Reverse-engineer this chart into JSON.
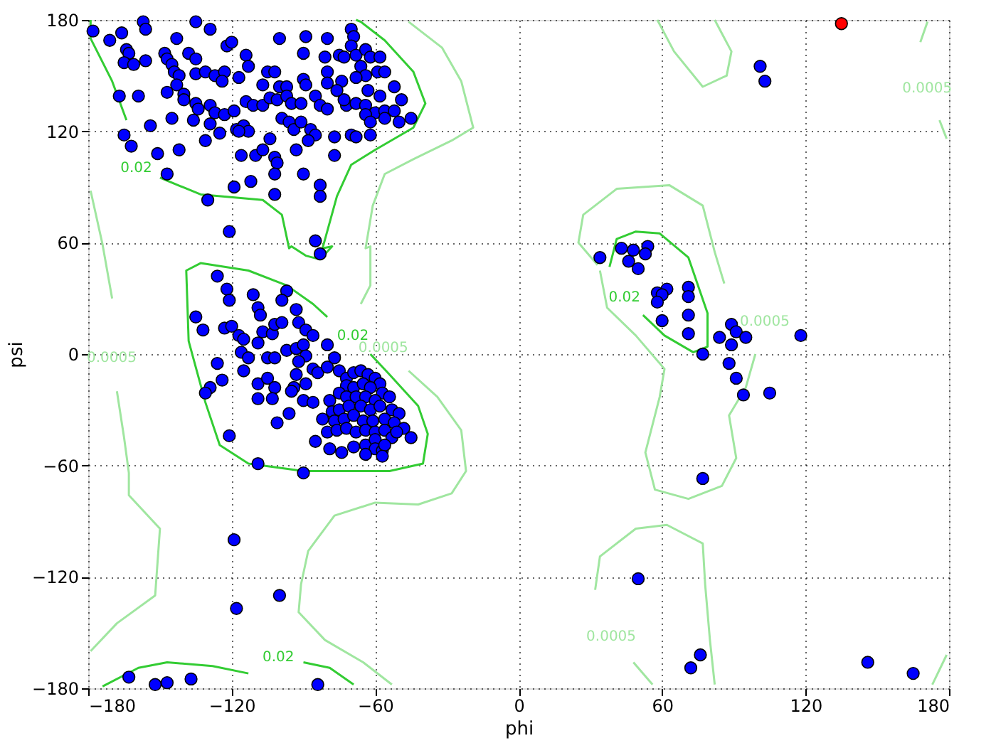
{
  "chart_data": {
    "type": "scatter",
    "xlabel": "phi",
    "ylabel": "psi",
    "xlim": [
      -180,
      180
    ],
    "ylim": [
      -180,
      180
    ],
    "xticks": [
      -180,
      -120,
      -60,
      0,
      60,
      120,
      180
    ],
    "yticks": [
      -180,
      -120,
      -60,
      0,
      60,
      120,
      180
    ],
    "grid": true,
    "marker": "circle",
    "series": [
      {
        "type": "line",
        "color": "#33cc33",
        "line_style": "solid",
        "marker": "none",
        "x": [
          -179,
          -179,
          -170,
          -164
        ],
        "values": [
          180,
          170,
          147,
          126
        ]
      },
      {
        "type": "line",
        "name": "0.02",
        "color": "#33cc33",
        "line_style": "solid",
        "marker": "none",
        "x": [
          -150,
          -133,
          -107,
          -99,
          -96,
          -95,
          -89,
          -83,
          -78,
          -82,
          -76,
          -70,
          -60,
          -44,
          -39,
          -44,
          -56,
          -66,
          -68
        ],
        "values": [
          95,
          86,
          83,
          75,
          57,
          58,
          53,
          51,
          58,
          57,
          85,
          102,
          110,
          122,
          135,
          152,
          169,
          179,
          180
        ]
      },
      {
        "type": "line",
        "name": "0.02",
        "color": "#33cc33",
        "line_style": "solid",
        "marker": "none",
        "x": [
          -62,
          -54,
          -42,
          -38,
          -40,
          -54,
          -90,
          -113,
          -125,
          -131,
          -138,
          -139,
          -133,
          -113,
          -97,
          -86,
          -80
        ],
        "values": [
          0,
          -11,
          -28,
          -43,
          -59,
          -63,
          -63,
          -59,
          -49,
          -26,
          7,
          45,
          49,
          45,
          37,
          27,
          20
        ]
      },
      {
        "type": "line",
        "name": "0.02",
        "color": "#33cc33",
        "line_style": "solid",
        "marker": "none",
        "x": [
          52,
          61,
          73,
          79,
          79,
          71,
          59,
          49,
          41,
          38
        ],
        "values": [
          21,
          10,
          1,
          4,
          22,
          52,
          65,
          66,
          62,
          47
        ]
      },
      {
        "type": "line",
        "color": "#33cc33",
        "line_style": "solid",
        "marker": "none",
        "x": [
          -174,
          -159,
          -147,
          -128,
          -113
        ],
        "values": [
          -179,
          -169,
          -166,
          -168,
          -172
        ]
      },
      {
        "type": "line",
        "name": "0.02",
        "color": "#33cc33",
        "line_style": "solid",
        "marker": "none",
        "x": [
          -90,
          -79,
          -69
        ],
        "values": [
          -166,
          -169,
          -178
        ]
      },
      {
        "type": "line",
        "color": "#a0e6a0",
        "line_style": "solid",
        "marker": "none",
        "x": [
          -46,
          -32,
          -24,
          -19,
          -28,
          -44,
          -56,
          -61,
          -64,
          -62,
          -62,
          -66
        ],
        "values": [
          179,
          165,
          147,
          122,
          115,
          105,
          97,
          80,
          57,
          58,
          37,
          27
        ]
      },
      {
        "type": "line",
        "name": "0.0005",
        "color": "#a0e6a0",
        "line_style": "solid",
        "marker": "none",
        "x": [
          -46,
          -34,
          -24,
          -22,
          -28,
          -42,
          -60,
          -77,
          -88,
          -91,
          -92,
          -81,
          -65,
          -53
        ],
        "values": [
          -9,
          -23,
          -41,
          -63,
          -75,
          -81,
          -80,
          -87,
          -106,
          -124,
          -139,
          -154,
          -166,
          -178
        ]
      },
      {
        "type": "line",
        "color": "#a0e6a0",
        "line_style": "solid",
        "marker": "none",
        "x": [
          -179,
          -174,
          -170
        ],
        "values": [
          88,
          59,
          30
        ]
      },
      {
        "type": "line",
        "name": "0.0005",
        "color": "#a0e6a0",
        "line_style": "solid",
        "marker": "none",
        "x": [
          -168,
          -165,
          -163,
          -163,
          -150,
          -152,
          -168,
          -179
        ],
        "values": [
          -20,
          -45,
          -64,
          -76,
          -94,
          -130,
          -145,
          -160
        ]
      },
      {
        "type": "line",
        "color": "#a0e6a0",
        "line_style": "solid",
        "marker": "none",
        "x": [
          33,
          25,
          27,
          41,
          63,
          77,
          82,
          86
        ],
        "values": [
          48,
          60,
          75,
          89,
          91,
          80,
          55,
          38
        ]
      },
      {
        "type": "line",
        "name": "0.0005",
        "color": "#a0e6a0",
        "line_style": "solid",
        "marker": "none",
        "x": [
          99,
          95,
          88,
          91,
          85,
          71,
          57,
          53,
          59,
          61,
          49,
          37,
          34
        ],
        "values": [
          0,
          -18,
          -33,
          -56,
          -71,
          -78,
          -73,
          -53,
          -23,
          -8,
          10,
          25,
          45
        ]
      },
      {
        "type": "line",
        "color": "#a0e6a0",
        "line_style": "solid",
        "marker": "none",
        "x": [
          32,
          34,
          49,
          62,
          77,
          78,
          80,
          82
        ],
        "values": [
          -127,
          -109,
          -94,
          -92,
          -102,
          -124,
          -154,
          -178
        ]
      },
      {
        "type": "line",
        "name": "0.0005",
        "color": "#a0e6a0",
        "line_style": "solid",
        "marker": "none",
        "x": [
          48,
          56
        ],
        "values": [
          -166,
          -178
        ]
      },
      {
        "type": "line",
        "color": "#a0e6a0",
        "line_style": "solid",
        "marker": "none",
        "x": [
          58,
          65,
          77,
          87,
          89,
          82
        ],
        "values": [
          180,
          163,
          144,
          150,
          163,
          180
        ]
      },
      {
        "type": "line",
        "color": "#a0e6a0",
        "line_style": "solid",
        "marker": "none",
        "x": [
          171,
          168
        ],
        "values": [
          179,
          168
        ]
      },
      {
        "type": "line",
        "name": "0.0005",
        "color": "#a0e6a0",
        "line_style": "solid",
        "marker": "none",
        "x": [
          176,
          179
        ],
        "values": [
          126,
          116
        ]
      },
      {
        "type": "line",
        "color": "#a0e6a0",
        "line_style": "solid",
        "marker": "none",
        "x": [
          173,
          179
        ],
        "values": [
          -178,
          -162
        ]
      },
      {
        "color": "#0000ff",
        "x": [
          -178,
          -166,
          -157,
          -156,
          -135,
          -129,
          -171,
          -143,
          -122,
          -120,
          -100,
          -89,
          -80,
          -70,
          -69,
          -164,
          -163,
          -165,
          -161,
          -156,
          -148,
          -147,
          -138,
          -135,
          -145,
          -144,
          -142,
          -135,
          -131,
          -127,
          -123,
          -124,
          -114,
          -113,
          -117,
          -105,
          -102,
          -107,
          -100,
          -97,
          -90,
          -89,
          -90,
          -81,
          -80,
          -80,
          -75,
          -73,
          -70,
          -68,
          -64,
          -62,
          -58,
          -66,
          -64,
          -59,
          -56,
          -68,
          -74,
          -63,
          -52,
          -58,
          -49,
          -167,
          -159,
          -147,
          -143,
          -140,
          -140,
          -135,
          -134,
          -129,
          -127,
          -123,
          -119,
          -114,
          -111,
          -107,
          -104,
          -101,
          -97,
          -95,
          -91,
          -85,
          -83,
          -80,
          -72,
          -68,
          -64,
          -60,
          -56,
          -52,
          -45,
          -50,
          -56,
          -64,
          -73,
          -76,
          -145,
          -136,
          -129,
          -118,
          -115,
          -113,
          -117,
          -99,
          -96,
          -94,
          -91,
          -87,
          -85,
          -88,
          -77,
          -70,
          -62,
          -62,
          -154,
          -165,
          -162,
          -151,
          -142,
          -131,
          -125,
          -116,
          -110,
          -107,
          -104,
          -102,
          -101,
          -102,
          -93,
          -90,
          -77,
          -68,
          -147,
          -130,
          -119,
          -112,
          -102,
          -83,
          -83,
          -121,
          -85,
          -83,
          -126,
          -122,
          -121,
          -111,
          -97,
          -135,
          -132,
          -123,
          -120,
          -117,
          -115,
          -109,
          -108,
          -109,
          -107,
          -103,
          -102,
          -99,
          -99,
          -93,
          -92,
          -89,
          -86,
          -80,
          -116,
          -113,
          -115,
          -105,
          -102,
          -97,
          -93,
          -90,
          -89,
          -92,
          -86,
          -93,
          -94,
          -89,
          -84,
          -80,
          -77,
          -126,
          -124,
          -129,
          -131,
          -109,
          -109,
          -105,
          -102,
          -103,
          -95,
          -90,
          -86,
          -101,
          -96,
          -121,
          -109,
          -90,
          -75,
          -72,
          -69,
          -66,
          -63,
          -60,
          -58,
          -72,
          -69,
          -65,
          -62,
          -57,
          -54,
          -75,
          -72,
          -68,
          -64,
          -60,
          -79,
          -78,
          -75,
          -71,
          -66,
          -62,
          -58,
          -53,
          -50,
          -82,
          -77,
          -73,
          -69,
          -65,
          -61,
          -56,
          -52,
          -48,
          -45,
          -80,
          -76,
          -72,
          -68,
          -64,
          -60,
          -56,
          -53,
          -85,
          -79,
          -74,
          -69,
          -64,
          -60,
          -60,
          -57,
          -56,
          -64,
          -51,
          -57,
          101,
          103,
          34,
          43,
          48,
          54,
          53,
          46,
          50,
          58,
          62,
          60,
          58,
          71,
          71,
          60,
          71,
          71,
          77,
          89,
          91,
          84,
          89,
          95,
          118,
          88,
          91,
          94,
          105,
          77,
          -119,
          50,
          -118,
          -100,
          -163,
          -152,
          -147,
          -137,
          -84,
          76,
          72,
          146,
          165
        ],
        "values": [
          174,
          173,
          179,
          175,
          179,
          175,
          169,
          170,
          166,
          168,
          170,
          171,
          170,
          175,
          171,
          164,
          162,
          157,
          156,
          158,
          162,
          159,
          162,
          159,
          156,
          152,
          150,
          151,
          152,
          150,
          152,
          147,
          161,
          155,
          149,
          152,
          152,
          145,
          144,
          144,
          148,
          145,
          162,
          160,
          152,
          146,
          161,
          160,
          166,
          161,
          164,
          160,
          160,
          155,
          150,
          152,
          152,
          149,
          147,
          142,
          144,
          139,
          137,
          139,
          139,
          141,
          145,
          140,
          137,
          135,
          132,
          134,
          130,
          129,
          131,
          136,
          134,
          134,
          138,
          137,
          139,
          135,
          135,
          139,
          134,
          132,
          134,
          135,
          134,
          130,
          131,
          131,
          127,
          125,
          127,
          129,
          137,
          142,
          127,
          126,
          124,
          121,
          123,
          120,
          120,
          127,
          125,
          121,
          125,
          121,
          118,
          115,
          117,
          118,
          118,
          125,
          123,
          118,
          112,
          108,
          110,
          115,
          119,
          107,
          107,
          110,
          116,
          106,
          103,
          97,
          110,
          97,
          107,
          117,
          97,
          83,
          90,
          93,
          86,
          91,
          85,
          66,
          61,
          54,
          42,
          35,
          29,
          32,
          34,
          20,
          13,
          14,
          15,
          10,
          8,
          25,
          21,
          6,
          12,
          11,
          16,
          17,
          29,
          24,
          17,
          13,
          10,
          5,
          1,
          -2,
          -9,
          -2,
          -2,
          2,
          3,
          5,
          -1,
          -4,
          -8,
          -11,
          -18,
          -16,
          -10,
          -7,
          -2,
          -5,
          -14,
          -18,
          -21,
          -16,
          -24,
          -13,
          -18,
          -24,
          -20,
          -25,
          -26,
          -37,
          -32,
          -44,
          -59,
          -64,
          -9,
          -13,
          -10,
          -9,
          -11,
          -13,
          -16,
          -17,
          -18,
          -16,
          -18,
          -21,
          -23,
          -21,
          -23,
          -23,
          -23,
          -25,
          -25,
          -31,
          -30,
          -28,
          -28,
          -30,
          -28,
          -30,
          -32,
          -35,
          -36,
          -35,
          -33,
          -36,
          -36,
          -35,
          -37,
          -40,
          -45,
          -42,
          -41,
          -40,
          -42,
          -41,
          -42,
          -41,
          -45,
          -47,
          -51,
          -53,
          -50,
          -49,
          -46,
          -51,
          -52,
          -49,
          -54,
          -42,
          -55,
          155,
          147,
          52,
          57,
          56,
          58,
          54,
          50,
          46,
          33,
          35,
          32,
          28,
          36,
          31,
          18,
          21,
          11,
          0,
          16,
          12,
          9,
          5,
          9,
          10,
          -5,
          -13,
          -22,
          -21,
          -67,
          -100,
          -121,
          -137,
          -130,
          -174,
          -178,
          -177,
          -175,
          -178,
          -162,
          -169,
          -166,
          -172
        ]
      },
      {
        "color": "#ff0000",
        "x": [
          135
        ],
        "values": [
          178
        ]
      }
    ]
  }
}
